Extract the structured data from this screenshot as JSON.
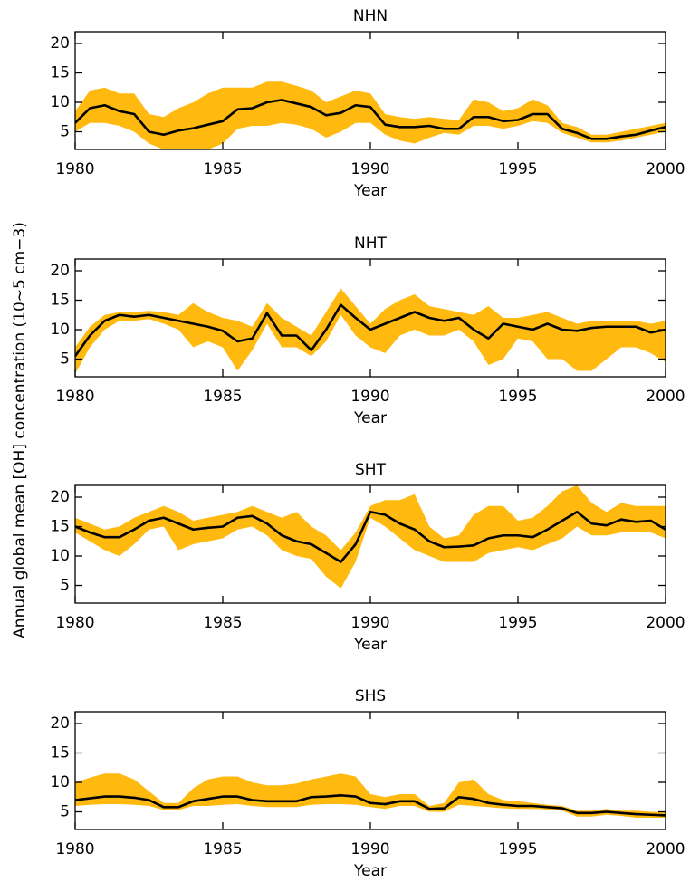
{
  "ylabel": "Annual global mean [OH] concentration (10~5 cm−3)",
  "chart_data": [
    {
      "type": "line",
      "title": "NHN",
      "xlabel": "Year",
      "xlim": [
        1980,
        2000
      ],
      "ylim": [
        2,
        22
      ],
      "xticks": [
        1980,
        1985,
        1990,
        1995,
        2000
      ],
      "yticks": [
        5,
        10,
        15,
        20
      ],
      "x": [
        1980,
        1980.5,
        1981,
        1981.5,
        1982,
        1982.5,
        1983,
        1983.5,
        1984,
        1984.5,
        1985,
        1985.5,
        1986,
        1986.5,
        1987,
        1987.5,
        1988,
        1988.5,
        1989,
        1989.5,
        1990,
        1990.5,
        1991,
        1991.5,
        1992,
        1992.5,
        1993,
        1993.5,
        1994,
        1994.5,
        1995,
        1995.5,
        1996,
        1996.5,
        1997,
        1997.5,
        1998,
        1998.5,
        1999,
        1999.5,
        2000
      ],
      "series": [
        {
          "color": "#000000",
          "values": [
            6.5,
            9,
            9.5,
            8.5,
            8,
            5,
            4.5,
            5.2,
            5.6,
            6.2,
            6.8,
            8.8,
            9,
            10,
            10.4,
            9.8,
            9.2,
            7.8,
            8.2,
            9.5,
            9.2,
            6.2,
            5.8,
            5.8,
            6,
            5.5,
            5.5,
            7.5,
            7.5,
            6.8,
            7,
            8,
            8,
            5.5,
            4.8,
            3.8,
            3.8,
            4.2,
            4.5,
            5.2,
            5.8
          ]
        }
      ],
      "band": {
        "color": "#ffb90f",
        "upper": [
          8.5,
          12,
          12.5,
          11.5,
          11.5,
          8,
          7.5,
          9,
          10,
          11.5,
          12.5,
          12.5,
          12.5,
          13.5,
          13.5,
          12.8,
          12,
          10,
          11,
          12,
          11.5,
          8,
          7.5,
          7.2,
          7.5,
          7.2,
          7,
          10.5,
          10,
          8.5,
          9,
          10.5,
          9.5,
          6.5,
          5.8,
          4.5,
          4.5,
          5,
          5.5,
          6,
          6.5
        ],
        "lower": [
          5,
          6.5,
          6.5,
          6,
          5,
          3,
          2,
          2,
          2,
          2,
          3,
          5.5,
          6,
          6,
          6.5,
          6.2,
          5.5,
          4,
          5,
          6.5,
          6.5,
          4.5,
          3.5,
          3,
          4,
          4.8,
          4.5,
          6,
          6,
          5.5,
          6,
          6.8,
          6.5,
          4.8,
          4,
          3.2,
          3.2,
          3.5,
          4,
          4.5,
          5
        ]
      }
    },
    {
      "type": "line",
      "title": "NHT",
      "xlabel": "Year",
      "xlim": [
        1980,
        2000
      ],
      "ylim": [
        2,
        22
      ],
      "xticks": [
        1980,
        1985,
        1990,
        1995,
        2000
      ],
      "yticks": [
        5,
        10,
        15,
        20
      ],
      "x": [
        1980,
        1980.5,
        1981,
        1981.5,
        1982,
        1982.5,
        1983,
        1983.5,
        1984,
        1984.5,
        1985,
        1985.5,
        1986,
        1986.5,
        1987,
        1987.5,
        1988,
        1988.5,
        1989,
        1989.5,
        1990,
        1990.5,
        1991,
        1991.5,
        1992,
        1992.5,
        1993,
        1993.5,
        1994,
        1994.5,
        1995,
        1995.5,
        1996,
        1996.5,
        1997,
        1997.5,
        1998,
        1998.5,
        1999,
        1999.5,
        2000
      ],
      "series": [
        {
          "color": "#000000",
          "values": [
            5.5,
            9,
            11.5,
            12.5,
            12.2,
            12.5,
            12,
            11.5,
            11,
            10.5,
            9.8,
            8,
            8.5,
            12.8,
            9,
            9,
            6.5,
            10,
            14.2,
            12,
            10,
            11,
            12,
            13,
            12,
            11.5,
            12,
            10,
            8.5,
            11,
            10.5,
            10,
            11,
            10,
            9.8,
            10.3,
            10.5,
            10.5,
            10.5,
            9.5,
            10
          ]
        }
      ],
      "band": {
        "color": "#ffb90f",
        "upper": [
          7,
          10.5,
          12.5,
          13,
          13,
          13.2,
          13,
          12.5,
          14.5,
          13,
          12,
          11.5,
          10.5,
          14.5,
          12,
          10.5,
          9,
          13,
          17,
          14,
          11,
          13.5,
          15,
          16,
          14,
          13.5,
          13,
          12.5,
          14,
          12,
          12,
          12.5,
          13,
          12,
          11,
          11.5,
          11.5,
          11.5,
          11.5,
          11,
          11.5
        ],
        "lower": [
          2.5,
          7,
          10,
          11.5,
          11.5,
          11.8,
          11,
          10,
          7,
          8,
          7,
          3,
          6.5,
          11,
          7,
          7,
          5.5,
          8,
          12.5,
          9,
          7,
          6,
          9,
          10,
          9,
          9,
          10,
          8,
          4,
          5,
          8.5,
          8,
          5,
          5,
          3,
          3,
          5,
          7,
          7,
          6,
          4.5
        ]
      }
    },
    {
      "type": "line",
      "title": "SHT",
      "xlabel": "Year",
      "xlim": [
        1980,
        2000
      ],
      "ylim": [
        2,
        22
      ],
      "xticks": [
        1980,
        1985,
        1990,
        1995,
        2000
      ],
      "yticks": [
        5,
        10,
        15,
        20
      ],
      "x": [
        1980,
        1980.5,
        1981,
        1981.5,
        1982,
        1982.5,
        1983,
        1983.5,
        1984,
        1984.5,
        1985,
        1985.5,
        1986,
        1986.5,
        1987,
        1987.5,
        1988,
        1988.5,
        1989,
        1989.5,
        1990,
        1990.5,
        1991,
        1991.5,
        1992,
        1992.5,
        1993,
        1993.5,
        1994,
        1994.5,
        1995,
        1995.5,
        1996,
        1996.5,
        1997,
        1997.5,
        1998,
        1998.5,
        1999,
        1999.5,
        2000
      ],
      "series": [
        {
          "color": "#000000",
          "values": [
            15,
            14,
            13.2,
            13.2,
            14.5,
            16,
            16.5,
            15.5,
            14.5,
            14.8,
            15,
            16.5,
            16.8,
            15.5,
            13.5,
            12.5,
            12,
            10.5,
            9,
            12,
            17.5,
            17,
            15.5,
            14.5,
            12.5,
            11.5,
            11.6,
            11.8,
            13,
            13.5,
            13.5,
            13.2,
            14.5,
            16,
            17.5,
            15.5,
            15.2,
            16.2,
            15.8,
            16,
            14.5
          ]
        }
      ],
      "band": {
        "color": "#ffb90f",
        "upper": [
          16.5,
          15.5,
          14.5,
          15,
          16.5,
          17.5,
          18.5,
          17.5,
          16,
          16.5,
          17,
          17.5,
          18.5,
          17.5,
          16.5,
          17.5,
          15,
          13.5,
          11,
          14,
          18.5,
          19.5,
          19.5,
          20.5,
          15,
          13,
          13.5,
          17,
          18.5,
          18.5,
          16,
          16.5,
          18.5,
          21,
          22,
          19,
          17.5,
          19,
          18.5,
          18.5,
          18.5
        ],
        "lower": [
          14,
          12.5,
          11,
          10,
          12,
          14.5,
          15,
          11,
          12,
          12.5,
          13,
          14.5,
          15,
          13.5,
          11,
          10,
          9.5,
          6.5,
          4.5,
          9,
          16.5,
          15,
          13,
          11,
          10,
          9,
          9,
          9,
          10.5,
          11,
          11.5,
          11,
          12,
          13,
          15,
          13.5,
          13.5,
          14,
          14,
          14,
          13
        ]
      }
    },
    {
      "type": "line",
      "title": "SHS",
      "xlabel": "Year",
      "xlim": [
        1980,
        2000
      ],
      "ylim": [
        2,
        22
      ],
      "xticks": [
        1980,
        1985,
        1990,
        1995,
        2000
      ],
      "yticks": [
        5,
        10,
        15,
        20
      ],
      "x": [
        1980,
        1980.5,
        1981,
        1981.5,
        1982,
        1982.5,
        1983,
        1983.5,
        1984,
        1984.5,
        1985,
        1985.5,
        1986,
        1986.5,
        1987,
        1987.5,
        1988,
        1988.5,
        1989,
        1989.5,
        1990,
        1990.5,
        1991,
        1991.5,
        1992,
        1992.5,
        1993,
        1993.5,
        1994,
        1994.5,
        1995,
        1995.5,
        1996,
        1996.5,
        1997,
        1997.5,
        1998,
        1998.5,
        1999,
        1999.5,
        2000
      ],
      "series": [
        {
          "color": "#000000",
          "values": [
            7,
            7.3,
            7.6,
            7.6,
            7.4,
            7,
            5.8,
            5.8,
            6.8,
            7.2,
            7.6,
            7.6,
            7,
            6.8,
            6.8,
            6.8,
            7.5,
            7.6,
            7.8,
            7.6,
            6.5,
            6.3,
            6.8,
            6.8,
            5.5,
            5.6,
            7.5,
            7.2,
            6.5,
            6.2,
            6,
            6,
            5.8,
            5.6,
            4.8,
            4.8,
            5,
            4.8,
            4.6,
            4.5,
            4.4
          ]
        }
      ],
      "band": {
        "color": "#ffb90f",
        "upper": [
          10,
          10.8,
          11.5,
          11.5,
          10.5,
          8.5,
          6.5,
          6.5,
          9,
          10.5,
          11,
          11,
          10,
          9.5,
          9.5,
          9.8,
          10.5,
          11,
          11.5,
          11,
          8,
          7.5,
          8,
          8,
          6,
          6.5,
          10,
          10.5,
          8,
          7,
          6.8,
          6.5,
          6.2,
          6,
          5.2,
          5.2,
          5.5,
          5.2,
          5.2,
          5,
          5
        ],
        "lower": [
          6,
          6.2,
          6.3,
          6.3,
          6.2,
          6,
          5.3,
          5.3,
          6,
          6,
          6.2,
          6.3,
          6,
          5.8,
          5.8,
          5.8,
          6.2,
          6.3,
          6.3,
          6.2,
          5.8,
          5.5,
          6,
          6,
          5,
          5,
          6.2,
          6,
          5.8,
          5.6,
          5.5,
          5.5,
          5.4,
          5.2,
          4.2,
          4.2,
          4.5,
          4.3,
          4,
          4,
          4
        ]
      }
    }
  ]
}
